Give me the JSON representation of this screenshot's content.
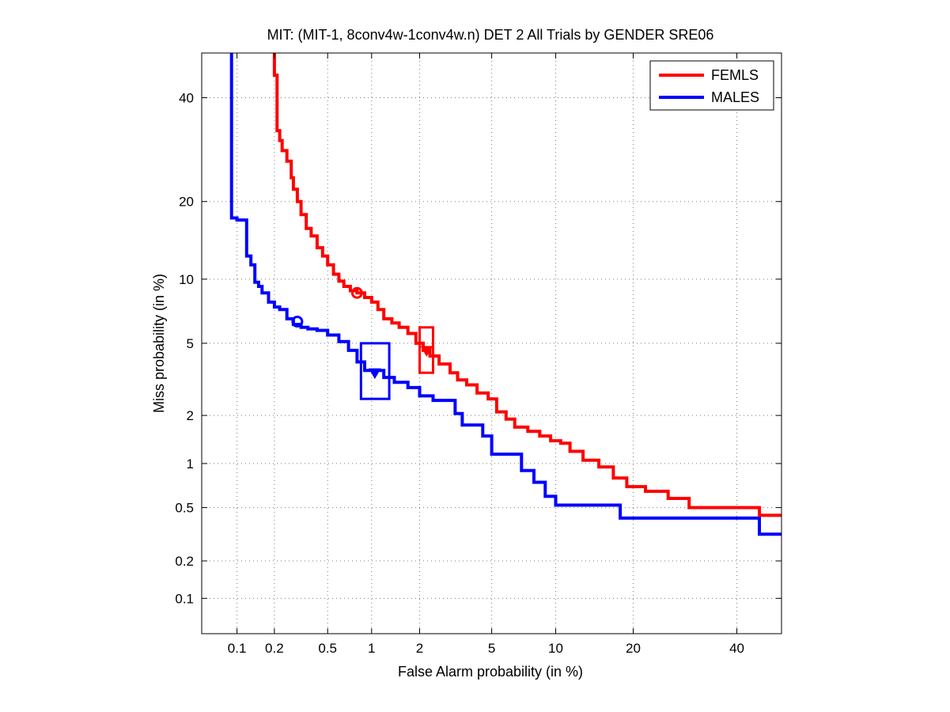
{
  "chart_data": {
    "type": "line",
    "title": "MIT: (MIT-1, 8conv4w-1conv4w.n) DET 2 All Trials by GENDER SRE06",
    "xlabel": "False Alarm probability (in %)",
    "ylabel": "Miss probability (in %)",
    "x_scale": "probit",
    "y_scale": "probit",
    "xlim": [
      0.05,
      50
    ],
    "ylim": [
      0.05,
      50
    ],
    "x_ticks": [
      0.1,
      0.2,
      0.5,
      1,
      2,
      5,
      10,
      20,
      40
    ],
    "x_tick_labels": [
      "0.1",
      "0.2",
      "0.5",
      "1",
      "2",
      "5",
      "10",
      "20",
      "40"
    ],
    "y_ticks": [
      0.1,
      0.2,
      0.5,
      1,
      2,
      5,
      10,
      20,
      40
    ],
    "y_tick_labels": [
      "0.1",
      "0.2",
      "0.5",
      "1",
      "2",
      "5",
      "10",
      "20",
      "40"
    ],
    "grid": true,
    "legend_position": "top-right",
    "series": [
      {
        "name": "FEMLS",
        "color": "#ff0000",
        "x": [
          0.2,
          0.2,
          0.21,
          0.21,
          0.22,
          0.23,
          0.25,
          0.27,
          0.28,
          0.3,
          0.32,
          0.35,
          0.38,
          0.42,
          0.46,
          0.5,
          0.55,
          0.6,
          0.65,
          0.72,
          0.8,
          0.9,
          1.0,
          1.1,
          1.2,
          1.35,
          1.5,
          1.7,
          1.9,
          2.1,
          2.3,
          2.6,
          3.0,
          3.3,
          3.7,
          4.2,
          4.8,
          5.3,
          5.9,
          6.5,
          7.5,
          8.5,
          9.5,
          10.5,
          11.5,
          13.0,
          15.0,
          17.0,
          19.0,
          22.0,
          26.0,
          30.0,
          40.0,
          45.0,
          50.0
        ],
        "y": [
          50,
          45,
          40,
          33,
          31,
          29,
          27,
          24,
          22,
          20,
          18,
          16,
          15,
          13.5,
          12.5,
          11.5,
          10.5,
          9.8,
          9.3,
          8.9,
          8.7,
          8.3,
          7.9,
          7.3,
          6.6,
          6.3,
          6.0,
          5.6,
          5.0,
          4.6,
          4.3,
          3.9,
          3.5,
          3.2,
          3.0,
          2.7,
          2.5,
          2.1,
          1.9,
          1.7,
          1.6,
          1.5,
          1.4,
          1.35,
          1.2,
          1.05,
          0.95,
          0.8,
          0.7,
          0.65,
          0.58,
          0.5,
          0.5,
          0.44,
          0.44
        ],
        "marker_circle": {
          "x": 0.8,
          "y": 8.7
        },
        "marker_triangle": {
          "x": 2.2,
          "y": 4.6
        },
        "confidence_box": {
          "x": [
            2.0,
            2.4
          ],
          "y": [
            3.5,
            6.0
          ]
        }
      },
      {
        "name": "MALES",
        "color": "#0000ff",
        "x": [
          0.09,
          0.09,
          0.1,
          0.12,
          0.12,
          0.13,
          0.14,
          0.15,
          0.16,
          0.18,
          0.2,
          0.22,
          0.25,
          0.28,
          0.32,
          0.36,
          0.42,
          0.5,
          0.6,
          0.7,
          0.8,
          0.9,
          1.0,
          1.2,
          1.4,
          1.7,
          2.0,
          2.4,
          3.0,
          3.2,
          3.5,
          4.0,
          4.5,
          5.0,
          6.0,
          7.0,
          8.0,
          9.0,
          10.0,
          12.0,
          18.0,
          30.0,
          45.0,
          50.0
        ],
        "y": [
          50,
          17.5,
          17.2,
          17.2,
          12.5,
          11.5,
          9.7,
          9.3,
          8.7,
          7.9,
          7.5,
          7.3,
          6.6,
          6.2,
          6.0,
          5.9,
          5.8,
          5.5,
          5.1,
          4.6,
          4.0,
          3.6,
          3.6,
          3.3,
          3.1,
          2.9,
          2.6,
          2.45,
          2.45,
          2.05,
          1.75,
          1.75,
          1.5,
          1.15,
          1.15,
          0.9,
          0.75,
          0.6,
          0.52,
          0.52,
          0.42,
          0.42,
          0.32,
          0.32
        ],
        "marker_circle": {
          "x": 0.3,
          "y": 6.4
        },
        "marker_triangle": {
          "x": 1.05,
          "y": 3.5
        },
        "confidence_box": {
          "x": [
            0.85,
            1.3
          ],
          "y": [
            2.5,
            5.0
          ]
        }
      }
    ]
  }
}
